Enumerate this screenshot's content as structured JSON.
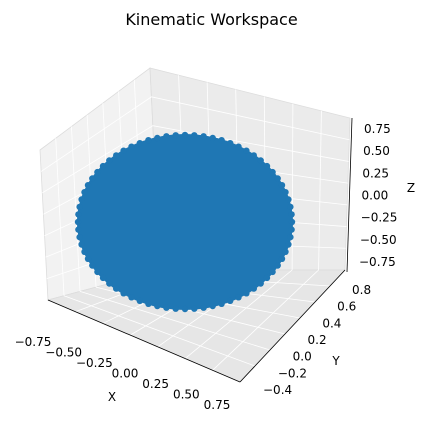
{
  "chart_data": {
    "type": "scatter",
    "projection": "3d",
    "title": "Kinematic Workspace",
    "xlabel": "X",
    "ylabel": "Y",
    "zlabel": "Z",
    "xlim": [
      -0.85,
      0.85
    ],
    "ylim": [
      -0.45,
      0.85
    ],
    "zlim": [
      -0.85,
      0.85
    ],
    "xticks": [
      "−0.75",
      "−0.50",
      "−0.25",
      "0.00",
      "0.25",
      "0.50",
      "0.75"
    ],
    "yticks": [
      "−0.4",
      "−0.2",
      "0.0",
      "0.2",
      "0.4",
      "0.6",
      "0.8"
    ],
    "zticks": [
      "0.75",
      "0.50",
      "0.25",
      "0.00",
      "−0.25",
      "−0.50",
      "−0.75"
    ],
    "grid": true,
    "series": [
      {
        "color": "#1f77b4",
        "shape": "ellipsoid point cloud",
        "center": [
          0,
          0.2,
          0
        ],
        "radius": [
          0.8,
          0.6,
          0.8
        ]
      }
    ]
  }
}
